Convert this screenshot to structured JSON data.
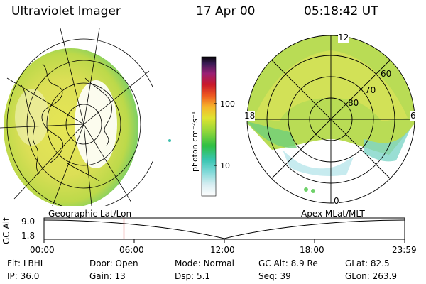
{
  "header": {
    "title": "Ultraviolet Imager",
    "date": "17 Apr 00",
    "time": "05:18:42 UT"
  },
  "colorbar": {
    "label": "photon cm⁻²s⁻¹",
    "tick_labels": [
      "100",
      "10"
    ]
  },
  "left_panel": {
    "label": "Geographic Lat/Lon",
    "graticule_icon": "globe-grid"
  },
  "right_panel": {
    "label": "Apex MLat/MLT",
    "mlt_labels": [
      "12",
      "18",
      "6",
      "0"
    ],
    "mlat_labels": [
      "60",
      "70",
      "80"
    ]
  },
  "altitude_plot": {
    "ylabel": "GC Alt",
    "y_ticks": [
      "9.0",
      "1.8"
    ],
    "x_ticks": [
      "00:00",
      "06:00",
      "12:00",
      "18:00",
      "23:59"
    ],
    "current_marker_hour": 5.31,
    "marker_color": "#cc0000"
  },
  "status": {
    "row1": [
      {
        "key": "Flt:",
        "value": "LBHL"
      },
      {
        "key": "Door:",
        "value": "Open"
      },
      {
        "key": "Mode:",
        "value": "Normal"
      },
      {
        "key": "GC Alt:",
        "value": "8.9 Re"
      },
      {
        "key": "GLat:",
        "value": "82.5"
      }
    ],
    "row2": [
      {
        "key": "IP:",
        "value": "36.0"
      },
      {
        "key": "Gain:",
        "value": "13"
      },
      {
        "key": "Dsp:",
        "value": "5.1"
      },
      {
        "key": "Seq:",
        "value": "39"
      },
      {
        "key": "GLon:",
        "value": "263.9"
      }
    ]
  }
}
